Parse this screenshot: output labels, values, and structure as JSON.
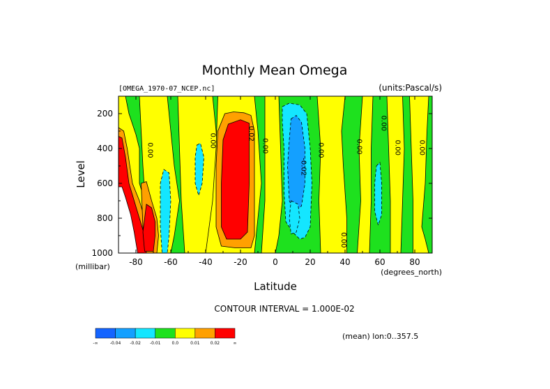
{
  "chart_data": {
    "type": "heatmap",
    "title": "Monthly Mean Omega",
    "source_label": "[OMEGA_1970-07_NCEP.nc]",
    "units_label": "(units:Pascal/s)",
    "xlabel": "Latitude",
    "x_units_label": "(degrees_north)",
    "ylabel": "Level",
    "y_units_label": "(millibar)",
    "xlim": [
      -90,
      90
    ],
    "ylim": [
      1000,
      100
    ],
    "x_ticks": [
      -80,
      -60,
      -40,
      -20,
      0,
      20,
      40,
      60,
      80
    ],
    "x_tick_labels": [
      "-80",
      "-60",
      "-40",
      "-20",
      "0",
      "20",
      "40",
      "60",
      "80"
    ],
    "y_ticks": [
      200,
      400,
      600,
      800,
      1000
    ],
    "y_tick_labels": [
      "200",
      "400",
      "600",
      "800",
      "1000"
    ],
    "contour_interval_label": "CONTOUR INTERVAL = 1.000E-02",
    "mean_label": "(mean) lon:0..357.5",
    "contour_labels": [
      {
        "x": -73,
        "y": 410,
        "text": "0.00"
      },
      {
        "x": -37,
        "y": 355,
        "text": "0.00"
      },
      {
        "x": -15,
        "y": 315,
        "text": "0.02"
      },
      {
        "x": -7,
        "y": 385,
        "text": "0.00"
      },
      {
        "x": 15,
        "y": 505,
        "text": "-0.02"
      },
      {
        "x": 25,
        "y": 410,
        "text": "0.00"
      },
      {
        "x": 47,
        "y": 390,
        "text": "0.00"
      },
      {
        "x": 61,
        "y": 255,
        "text": "0.00"
      },
      {
        "x": 69,
        "y": 395,
        "text": "0.00"
      },
      {
        "x": 83,
        "y": 395,
        "text": "0.00"
      },
      {
        "x": 38,
        "y": 925,
        "text": "0.00"
      }
    ],
    "colorbar": {
      "colors": [
        "#1464ff",
        "#14a0ff",
        "#14e6ff",
        "#1ee11e",
        "#ffff00",
        "#ffa000",
        "#ff0000"
      ],
      "labels": [
        "-∞",
        "-0.04",
        "-0.02",
        "-0.01",
        "0.0",
        "0.01",
        "0.02",
        "∞"
      ]
    },
    "levels": [
      -0.02,
      -0.01,
      0.0,
      0.01,
      0.02
    ],
    "regions": [
      {
        "level": 3,
        "points": [
          [
            -90,
            100
          ],
          [
            90,
            100
          ],
          [
            90,
            1000
          ],
          [
            -90,
            1000
          ]
        ]
      },
      {
        "level": 4,
        "points": [
          [
            -90,
            100
          ],
          [
            -86,
            100
          ],
          [
            -84,
            200
          ],
          [
            -80,
            320
          ],
          [
            -78,
            400
          ],
          [
            -78,
            600
          ],
          [
            -75,
            700
          ],
          [
            -70,
            800
          ],
          [
            -66,
            900
          ],
          [
            -64,
            1000
          ],
          [
            -90,
            1000
          ]
        ]
      },
      {
        "level": 4,
        "points": [
          [
            -78,
            100
          ],
          [
            -62,
            100
          ],
          [
            -60,
            300
          ],
          [
            -58,
            500
          ],
          [
            -55,
            700
          ],
          [
            -58,
            900
          ],
          [
            -60,
            1000
          ],
          [
            -70,
            1000
          ],
          [
            -74,
            800
          ],
          [
            -76,
            500
          ]
        ]
      },
      {
        "level": 2,
        "points": [
          [
            -64,
            520
          ],
          [
            -61,
            540
          ],
          [
            -60,
            700
          ],
          [
            -61,
            900
          ],
          [
            -62,
            1000
          ],
          [
            -65,
            1000
          ],
          [
            -66,
            850
          ],
          [
            -66,
            600
          ]
        ]
      },
      {
        "level": 4,
        "points": [
          [
            -56,
            100
          ],
          [
            -36,
            100
          ],
          [
            -34,
            300
          ],
          [
            -32,
            600
          ],
          [
            -34,
            800
          ],
          [
            -38,
            1000
          ],
          [
            -52,
            1000
          ],
          [
            -54,
            700
          ],
          [
            -55,
            400
          ]
        ]
      },
      {
        "level": 2,
        "points": [
          [
            -45,
            380
          ],
          [
            -43,
            370
          ],
          [
            -41,
            450
          ],
          [
            -42,
            600
          ],
          [
            -44,
            670
          ],
          [
            -46,
            600
          ],
          [
            -46,
            450
          ]
        ]
      },
      {
        "level": 4,
        "points": [
          [
            -33,
            100
          ],
          [
            -12,
            100
          ],
          [
            -10,
            300
          ],
          [
            -8,
            600
          ],
          [
            -10,
            800
          ],
          [
            -12,
            1000
          ],
          [
            -40,
            1000
          ],
          [
            -36,
            700
          ],
          [
            -34,
            400
          ]
        ]
      },
      {
        "level": 5,
        "points": [
          [
            -29,
            200
          ],
          [
            -24,
            190
          ],
          [
            -18,
            195
          ],
          [
            -14,
            210
          ],
          [
            -12,
            300
          ],
          [
            -12,
            600
          ],
          [
            -12,
            900
          ],
          [
            -14,
            970
          ],
          [
            -23,
            970
          ],
          [
            -31,
            960
          ],
          [
            -34,
            850
          ],
          [
            -34,
            500
          ],
          [
            -33,
            300
          ]
        ]
      },
      {
        "level": 6,
        "points": [
          [
            -27,
            260
          ],
          [
            -20,
            235
          ],
          [
            -15,
            255
          ],
          [
            -15,
            600
          ],
          [
            -16,
            880
          ],
          [
            -20,
            920
          ],
          [
            -28,
            920
          ],
          [
            -31,
            850
          ],
          [
            -31,
            600
          ],
          [
            -30,
            350
          ]
        ]
      },
      {
        "level": 4,
        "points": [
          [
            -6,
            100
          ],
          [
            2,
            100
          ],
          [
            3,
            400
          ],
          [
            4,
            700
          ],
          [
            2,
            900
          ],
          [
            0,
            1000
          ],
          [
            -8,
            1000
          ],
          [
            -6,
            700
          ],
          [
            -6,
            400
          ]
        ]
      },
      {
        "level": 2,
        "points": [
          [
            4,
            160
          ],
          [
            8,
            140
          ],
          [
            14,
            150
          ],
          [
            18,
            200
          ],
          [
            20,
            400
          ],
          [
            21,
            600
          ],
          [
            20,
            850
          ],
          [
            17,
            910
          ],
          [
            14,
            920
          ],
          [
            10,
            880
          ],
          [
            6,
            820
          ],
          [
            5,
            650
          ],
          [
            5,
            400
          ],
          [
            4,
            250
          ]
        ]
      },
      {
        "level": 1,
        "points": [
          [
            9,
            230
          ],
          [
            12,
            210
          ],
          [
            15,
            250
          ],
          [
            17,
            400
          ],
          [
            17,
            600
          ],
          [
            15,
            730
          ],
          [
            11,
            760
          ],
          [
            8,
            700
          ],
          [
            7,
            500
          ],
          [
            8,
            350
          ]
        ]
      },
      {
        "level": 2,
        "points": [
          [
            9,
            700
          ],
          [
            13,
            720
          ],
          [
            14,
            800
          ],
          [
            12,
            880
          ],
          [
            9,
            890
          ],
          [
            8,
            800
          ]
        ]
      },
      {
        "level": 4,
        "points": [
          [
            24,
            100
          ],
          [
            40,
            100
          ],
          [
            38,
            300
          ],
          [
            39,
            500
          ],
          [
            41,
            800
          ],
          [
            41,
            1000
          ],
          [
            26,
            1000
          ],
          [
            25,
            700
          ],
          [
            26,
            400
          ]
        ]
      },
      {
        "level": 4,
        "points": [
          [
            50,
            100
          ],
          [
            56,
            100
          ],
          [
            55,
            400
          ],
          [
            55,
            700
          ],
          [
            54,
            1000
          ],
          [
            47,
            1000
          ],
          [
            49,
            700
          ],
          [
            48,
            400
          ]
        ]
      },
      {
        "level": 2,
        "points": [
          [
            58,
            500
          ],
          [
            60,
            480
          ],
          [
            61,
            600
          ],
          [
            61,
            780
          ],
          [
            59,
            840
          ],
          [
            57,
            760
          ],
          [
            57,
            600
          ]
        ]
      },
      {
        "level": 4,
        "points": [
          [
            64,
            100
          ],
          [
            73,
            100
          ],
          [
            74,
            400
          ],
          [
            73,
            700
          ],
          [
            72,
            1000
          ],
          [
            66,
            1000
          ],
          [
            66,
            700
          ],
          [
            65,
            400
          ]
        ]
      },
      {
        "level": 4,
        "points": [
          [
            77,
            100
          ],
          [
            88,
            100
          ],
          [
            87,
            300
          ],
          [
            86,
            600
          ],
          [
            84,
            850
          ],
          [
            86,
            920
          ],
          [
            88,
            1000
          ],
          [
            79,
            1000
          ],
          [
            79,
            700
          ],
          [
            78,
            400
          ]
        ]
      },
      {
        "level": 5,
        "points": [
          [
            -90,
            280
          ],
          [
            -87,
            300
          ],
          [
            -85,
            400
          ],
          [
            -82,
            600
          ],
          [
            -78,
            700
          ],
          [
            -75,
            800
          ],
          [
            -72,
            900
          ],
          [
            -71,
            1000
          ],
          [
            -90,
            1000
          ]
        ]
      },
      {
        "level": 6,
        "points": [
          [
            -90,
            330
          ],
          [
            -88,
            340
          ],
          [
            -86,
            450
          ],
          [
            -84,
            600
          ],
          [
            -81,
            700
          ],
          [
            -78,
            800
          ],
          [
            -75,
            900
          ],
          [
            -74,
            1000
          ],
          [
            -90,
            1000
          ]
        ]
      },
      {
        "level": 5,
        "points": [
          [
            -77,
            600
          ],
          [
            -74,
            590
          ],
          [
            -71,
            700
          ],
          [
            -68,
            800
          ],
          [
            -67,
            900
          ],
          [
            -68,
            1000
          ],
          [
            -74,
            1000
          ],
          [
            -76,
            850
          ]
        ]
      },
      {
        "level": 6,
        "points": [
          [
            -74,
            720
          ],
          [
            -71,
            740
          ],
          [
            -69,
            820
          ],
          [
            -69,
            900
          ],
          [
            -70,
            990
          ],
          [
            -75,
            990
          ],
          [
            -76,
            880
          ]
        ]
      }
    ],
    "missing": [
      [
        -90,
        620
      ],
      [
        -88,
        620
      ],
      [
        -86,
        680
      ],
      [
        -83,
        780
      ],
      [
        -81,
        880
      ],
      [
        -79,
        1000
      ],
      [
        -90,
        1000
      ]
    ]
  }
}
